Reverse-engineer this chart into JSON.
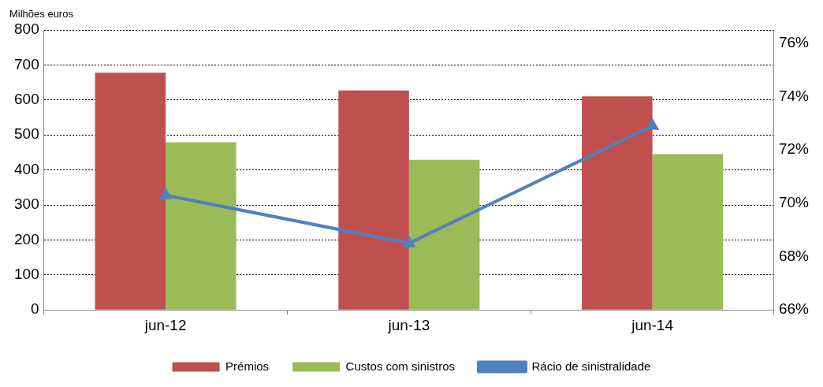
{
  "chart_data": {
    "type": "bar",
    "ylabel": "Milhões euros",
    "categories": [
      "jun-12",
      "jun-13",
      "jun-14"
    ],
    "series": [
      {
        "name": "Prémios",
        "color": "#c0504d",
        "values": [
          678,
          627,
          610
        ]
      },
      {
        "name": "Custos com sinistros",
        "color": "#9bbb59",
        "values": [
          479,
          429,
          445
        ]
      },
      {
        "name": "Rácio de sinistralidade",
        "type": "line",
        "axis": "y2",
        "color": "#4f81bd",
        "marker": "triangle",
        "values": [
          70.3,
          68.5,
          72.9
        ]
      }
    ],
    "ylim": [
      0,
      800
    ],
    "yticks": [
      0,
      100,
      200,
      300,
      400,
      500,
      600,
      700,
      800
    ],
    "y2lim": [
      66,
      76.5
    ],
    "y2ticks": [
      {
        "value": 66,
        "label": "66%"
      },
      {
        "value": 68,
        "label": "68%"
      },
      {
        "value": 70,
        "label": "70%"
      },
      {
        "value": 72,
        "label": "72%"
      },
      {
        "value": 74,
        "label": "74%"
      },
      {
        "value": 76,
        "label": "76%"
      }
    ],
    "grid": "y",
    "legend": "bottom"
  }
}
